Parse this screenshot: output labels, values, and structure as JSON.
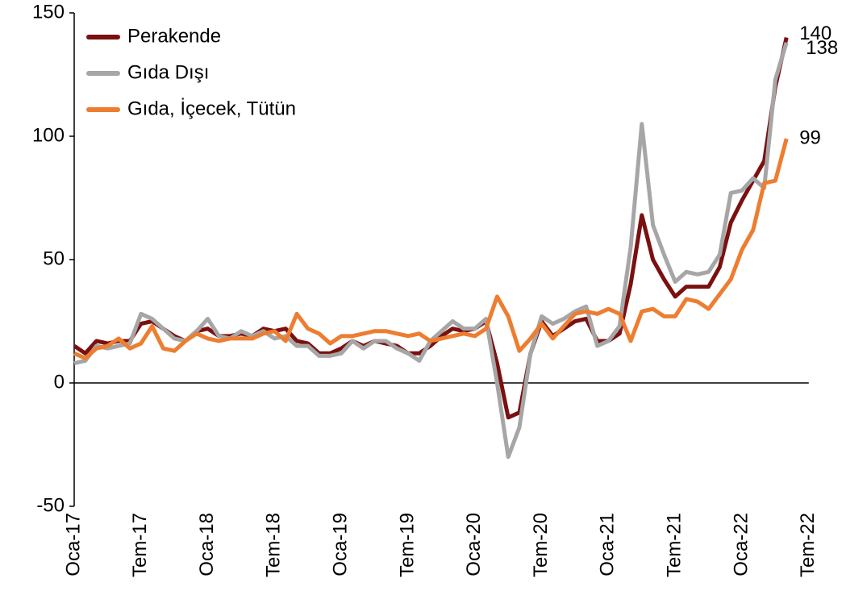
{
  "chart_data": {
    "type": "line",
    "categories": [
      "Oca-17",
      null,
      null,
      null,
      null,
      null,
      "Tem-17",
      null,
      null,
      null,
      null,
      null,
      "Oca-18",
      null,
      null,
      null,
      null,
      null,
      "Tem-18",
      null,
      null,
      null,
      null,
      null,
      "Oca-19",
      null,
      null,
      null,
      null,
      null,
      "Tem-19",
      null,
      null,
      null,
      null,
      null,
      "Oca-20",
      null,
      null,
      null,
      null,
      null,
      "Tem-20",
      null,
      null,
      null,
      null,
      null,
      "Oca-21",
      null,
      null,
      null,
      null,
      null,
      "Tem-21",
      null,
      null,
      null,
      null,
      null,
      "Oca-22",
      null,
      null,
      null,
      null,
      null,
      "Tem-22"
    ],
    "series": [
      {
        "name": "Perakende",
        "color": "#7b1010",
        "values": [
          15,
          12,
          17,
          16,
          17,
          17,
          24,
          25,
          22,
          19,
          17,
          21,
          22,
          19,
          19,
          20,
          19,
          22,
          21,
          22,
          17,
          16,
          12,
          12,
          14,
          17,
          15,
          17,
          16,
          15,
          12,
          12,
          15,
          19,
          22,
          21,
          22,
          25,
          8,
          -14,
          -12,
          12,
          25,
          19,
          22,
          25,
          26,
          17,
          17,
          20,
          40,
          68,
          50,
          42,
          35,
          39,
          39,
          39,
          47,
          65,
          74,
          82,
          90,
          120,
          140,
          null,
          null
        ]
      },
      {
        "name": "Gıda Dışı",
        "color": "#a6a6a6",
        "values": [
          8,
          9,
          15,
          14,
          15,
          16,
          28,
          26,
          22,
          18,
          17,
          21,
          26,
          19,
          18,
          21,
          19,
          21,
          18,
          19,
          15,
          15,
          11,
          11,
          12,
          17,
          14,
          17,
          17,
          14,
          12,
          9,
          17,
          21,
          25,
          22,
          22,
          26,
          0,
          -30,
          -18,
          12,
          27,
          24,
          26,
          29,
          31,
          15,
          17,
          23,
          55,
          105,
          64,
          52,
          41,
          45,
          44,
          45,
          52,
          77,
          78,
          83,
          79,
          123,
          138,
          null,
          null
        ]
      },
      {
        "name": "Gıda, İçecek, Tütün",
        "color": "#ed7d31",
        "values": [
          12,
          10,
          14,
          15,
          18,
          14,
          16,
          23,
          14,
          13,
          17,
          20,
          18,
          17,
          18,
          18,
          18,
          20,
          21,
          17,
          28,
          22,
          20,
          16,
          19,
          19,
          20,
          21,
          21,
          20,
          19,
          20,
          17,
          18,
          19,
          20,
          19,
          22,
          35,
          27,
          13,
          18,
          24,
          18,
          23,
          28,
          29,
          28,
          30,
          28,
          17,
          29,
          30,
          27,
          27,
          34,
          33,
          30,
          36,
          42,
          54,
          62,
          81,
          82,
          99,
          null,
          null
        ]
      }
    ],
    "ylim": [
      -50,
      150
    ],
    "yticks": [
      -50,
      0,
      50,
      100,
      150
    ],
    "grid": false,
    "legend": "top-left"
  }
}
